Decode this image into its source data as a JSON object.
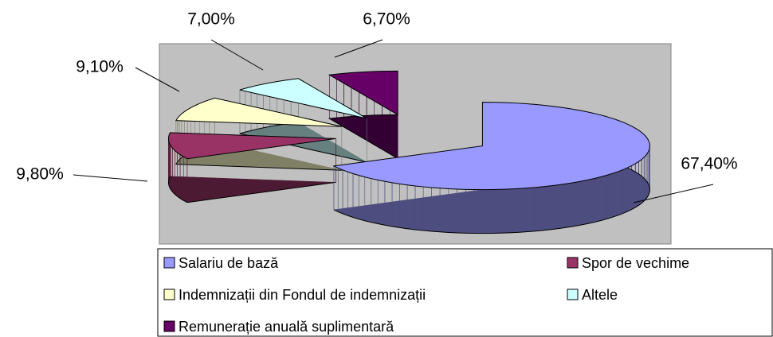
{
  "chart_data": {
    "type": "pie3d",
    "categories": [
      "Salariu de bază",
      "Spor de vechime",
      "Indemnizații din Fondul de indemnizații",
      "Altele",
      "Remunerație anuală suplimentară"
    ],
    "values": [
      67.4,
      9.8,
      9.1,
      7.0,
      6.7
    ],
    "value_labels": [
      "67,40%",
      "9,80%",
      "9,10%",
      "7,00%",
      "6,70%"
    ],
    "colors": [
      "#9999ff",
      "#993366",
      "#ffffcc",
      "#ccffff",
      "#660066"
    ],
    "legend": "bottom"
  }
}
